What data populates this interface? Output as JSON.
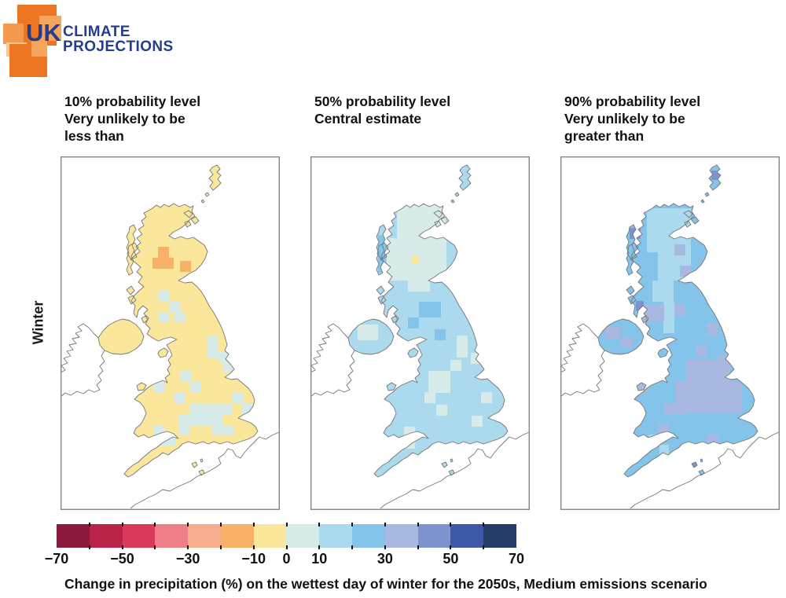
{
  "logo": {
    "uk": "UK",
    "line1": "CLIMATE",
    "line2": "PROJECTIONS",
    "navy": "#243E8C",
    "orange_dark": "#ED7623",
    "orange_mid": "#F29A4E",
    "orange_light": "#F5A55C",
    "orange_pale": "#F8C795"
  },
  "season_label": "Winter",
  "panels": [
    {
      "name": "10-percent-probability",
      "title_lines": [
        "10% probability level",
        "Very unlikely to be",
        "less than"
      ],
      "base": 6,
      "patches": [
        [
          124,
          115,
          14,
          14,
          5
        ],
        [
          117,
          129,
          27,
          14,
          5
        ],
        [
          152,
          133,
          14,
          14,
          5
        ],
        [
          124,
          170,
          14,
          14,
          7
        ],
        [
          138,
          184,
          14,
          14,
          7
        ],
        [
          124,
          198,
          14,
          13,
          7
        ],
        [
          145,
          198,
          14,
          13,
          7
        ],
        [
          186,
          228,
          14,
          28,
          7
        ],
        [
          200,
          249,
          14,
          14,
          7
        ],
        [
          207,
          262,
          13,
          13,
          7
        ],
        [
          152,
          273,
          14,
          14,
          7
        ],
        [
          164,
          287,
          14,
          14,
          7
        ],
        [
          145,
          300,
          14,
          14,
          7
        ],
        [
          119,
          287,
          14,
          14,
          7
        ],
        [
          164,
          314,
          42,
          28,
          7
        ],
        [
          151,
          328,
          13,
          27,
          7
        ],
        [
          192,
          342,
          28,
          12,
          7
        ],
        [
          205,
          314,
          14,
          14,
          7
        ],
        [
          218,
          300,
          14,
          14,
          7
        ],
        [
          231,
          314,
          14,
          14,
          7
        ],
        [
          119,
          342,
          14,
          27,
          7
        ],
        [
          132,
          355,
          14,
          14,
          7
        ],
        [
          92,
          400,
          12,
          12,
          7
        ],
        [
          106,
          394,
          12,
          12,
          7
        ]
      ]
    },
    {
      "name": "50-percent-probability",
      "title_lines": [
        "50% probability level",
        "Central estimate"
      ],
      "base": 8,
      "patches": [
        [
          110,
          62,
          62,
          42,
          7
        ],
        [
          97,
          104,
          76,
          54,
          7
        ],
        [
          124,
          158,
          28,
          14,
          7
        ],
        [
          60,
          214,
          26,
          20,
          7
        ],
        [
          186,
          228,
          14,
          28,
          7
        ],
        [
          204,
          250,
          14,
          14,
          7
        ],
        [
          150,
          273,
          28,
          28,
          7
        ],
        [
          178,
          259,
          14,
          14,
          7
        ],
        [
          145,
          300,
          14,
          14,
          7
        ],
        [
          160,
          316,
          14,
          14,
          7
        ],
        [
          205,
          330,
          14,
          14,
          7
        ],
        [
          119,
          344,
          14,
          28,
          7
        ],
        [
          217,
          300,
          14,
          14,
          7
        ],
        [
          128,
          126,
          10,
          11,
          6
        ],
        [
          86,
          100,
          10,
          48,
          9
        ],
        [
          138,
          185,
          28,
          20,
          9
        ],
        [
          124,
          205,
          14,
          14,
          9
        ],
        [
          158,
          220,
          14,
          14,
          9
        ]
      ]
    },
    {
      "name": "90-percent-probability",
      "title_lines": [
        "90% probability level",
        "Very unlikely to be",
        "greater than"
      ],
      "base": 9,
      "patches": [
        [
          110,
          66,
          56,
          56,
          8
        ],
        [
          124,
          122,
          42,
          36,
          8
        ],
        [
          117,
          158,
          27,
          27,
          8
        ],
        [
          131,
          185,
          14,
          40,
          8
        ],
        [
          112,
          354,
          14,
          14,
          8
        ],
        [
          126,
          367,
          12,
          12,
          8
        ],
        [
          145,
          112,
          14,
          14,
          10
        ],
        [
          152,
          139,
          14,
          14,
          10
        ],
        [
          104,
          188,
          28,
          22,
          10
        ],
        [
          145,
          189,
          14,
          14,
          10
        ],
        [
          186,
          212,
          14,
          16,
          10
        ],
        [
          173,
          240,
          14,
          14,
          10
        ],
        [
          201,
          252,
          14,
          14,
          10
        ],
        [
          160,
          259,
          56,
          28,
          10
        ],
        [
          146,
          287,
          84,
          40,
          10
        ],
        [
          132,
          315,
          28,
          14,
          10
        ],
        [
          119,
          259,
          14,
          14,
          10
        ],
        [
          99,
          289,
          14,
          12,
          10
        ],
        [
          124,
          340,
          14,
          14,
          10
        ],
        [
          187,
          354,
          14,
          12,
          10
        ],
        [
          56,
          217,
          20,
          15,
          10
        ],
        [
          76,
          231,
          16,
          12,
          10
        ],
        [
          88,
          91,
          14,
          14,
          11
        ],
        [
          96,
          184,
          10,
          13,
          11
        ],
        [
          192,
          18,
          12,
          12,
          11
        ],
        [
          166,
          388,
          11,
          10,
          11
        ]
      ]
    }
  ],
  "colorbar": {
    "colors": [
      "#8B1A3C",
      "#BA2348",
      "#D93A5C",
      "#EE7E8A",
      "#F5AD8D",
      "#F8B167",
      "#FBE79C",
      "#D7ECE9",
      "#ABDAEF",
      "#85C4EA",
      "#A9B8E0",
      "#7E93CE",
      "#3F57A7",
      "#253C66"
    ],
    "bucket_bounds": [
      -70,
      -60,
      -50,
      -40,
      -30,
      -20,
      -10,
      0,
      10,
      20,
      30,
      40,
      50,
      60,
      70
    ],
    "tick_labels": [
      {
        "t": "−70",
        "p": 0
      },
      {
        "t": "−50",
        "p": 2
      },
      {
        "t": "−30",
        "p": 4
      },
      {
        "t": "−10",
        "p": 6
      },
      {
        "t": "0",
        "p": 7
      },
      {
        "t": "10",
        "p": 8
      },
      {
        "t": "30",
        "p": 10
      },
      {
        "t": "50",
        "p": 12
      },
      {
        "t": "70",
        "p": 14
      }
    ]
  },
  "caption": "Change in precipitation (%) on the wettest day of winter for the 2050s, Medium emissions scenario"
}
